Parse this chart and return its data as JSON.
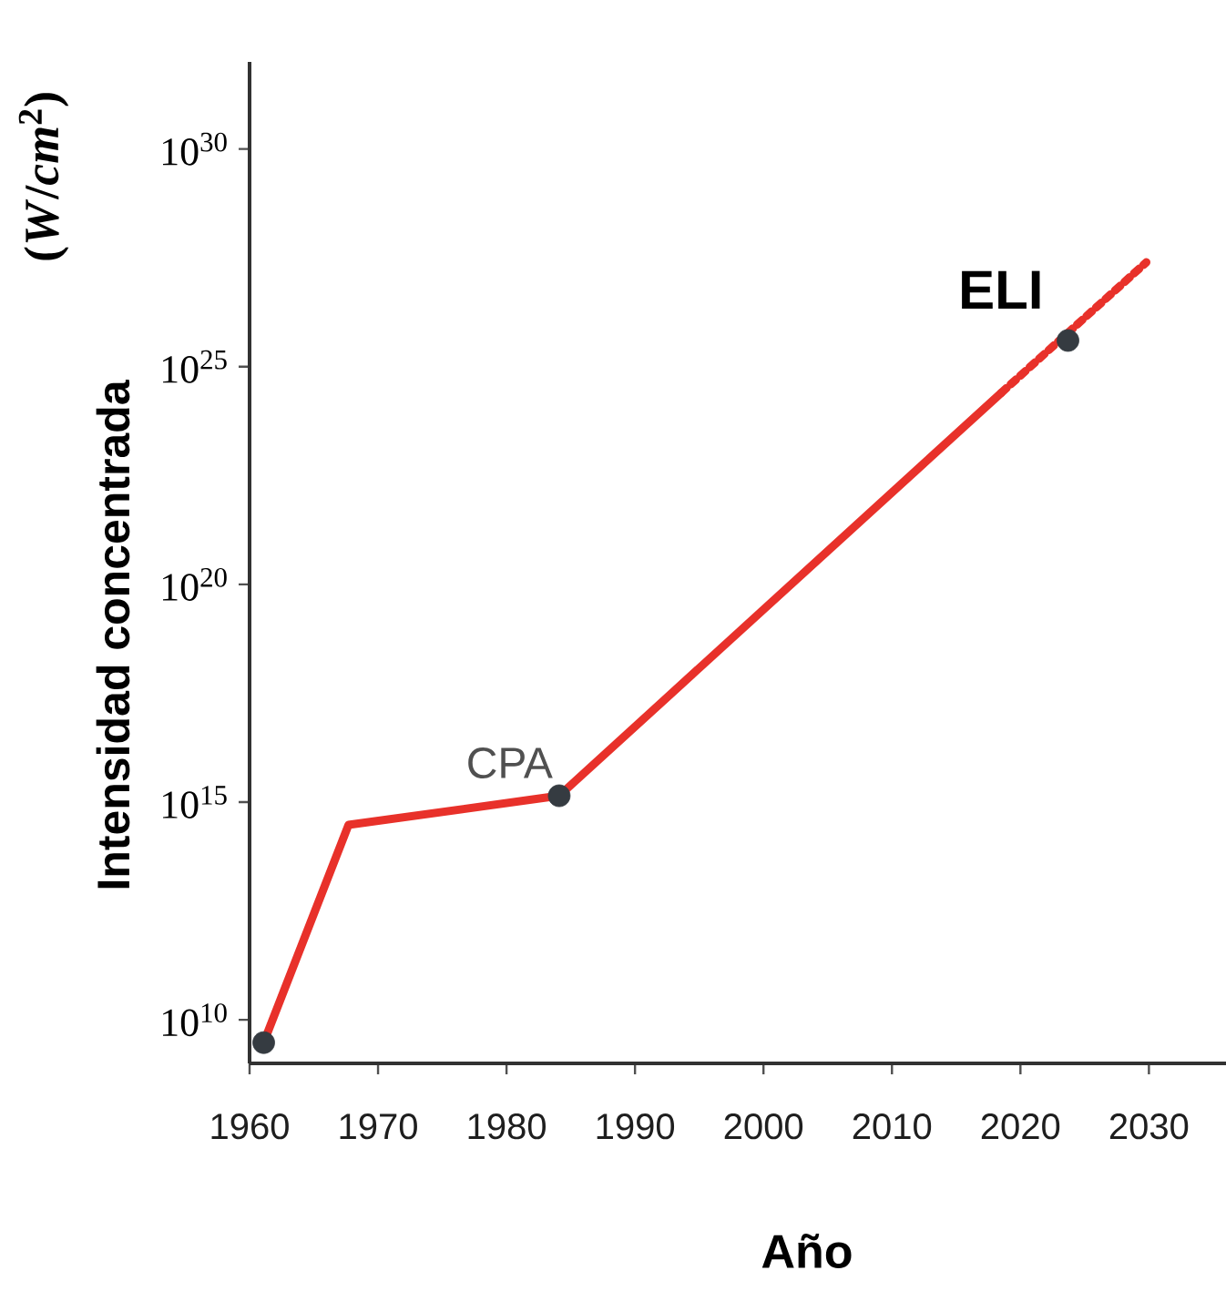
{
  "chart_data": {
    "type": "line",
    "xlabel": "Año",
    "ylabel": "Intensidad concentrada",
    "log": "y",
    "xlim": [
      1960,
      2036
    ],
    "ylim": [
      1000000000.0,
      1e+32
    ],
    "xticks": [
      1960,
      1970,
      1980,
      1990,
      2000,
      2010,
      2020,
      2030
    ],
    "yticks": [
      {
        "value": 10000000000.0,
        "label": "10$^{10}$"
      },
      {
        "value": 1000000000000000.0,
        "label": "10$^{15}$"
      },
      {
        "value": 1e+20,
        "label": "10$^{20}$"
      },
      {
        "value": 1e+25,
        "label": "10$^{25}$"
      },
      {
        "value": 1e+30,
        "label": "10$^{30}$"
      }
    ],
    "series": [
      {
        "color": "#e8312a",
        "line_style": "solid",
        "x": [
          1961.1,
          1967.7,
          1984.1,
          2018.5
        ],
        "values": [
          3000000000.0,
          300000000000000.0,
          1400000000000000.0,
          2.5e+24
        ]
      },
      {
        "color": "#e8312a",
        "line_style": "dotted",
        "x": [
          2018.5,
          2029.8
        ],
        "values": [
          2.5e+24,
          2.5e+27
        ]
      },
      {
        "type": "scatter",
        "color": "#353b41",
        "marker": "circle",
        "x": [
          1961.1,
          1984.1,
          2023.7
        ],
        "values": [
          3000000000.0,
          1400000000000000.0,
          4e+25
        ]
      }
    ],
    "annotations": [
      "(*W*/*cm*$^{2}$)",
      {
        "text": "CPA",
        "x": 1984.1,
        "y": 1400000000000000.0
      },
      {
        "text": "ELI",
        "x": 2023.7,
        "y": 4e+25
      }
    ]
  }
}
